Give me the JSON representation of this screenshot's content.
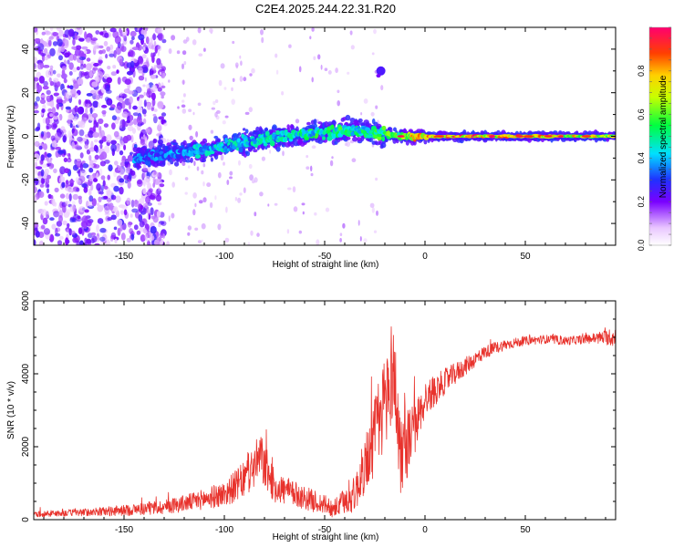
{
  "chart_data": [
    {
      "type": "heatmap",
      "title": "C2E4.2025.244.22.31.R20",
      "xlabel": "Height of straight line (km)",
      "ylabel": "Frequency (Hz)",
      "xlim": [
        -195,
        95
      ],
      "ylim": [
        -50,
        50
      ],
      "xticks": [
        -150,
        -100,
        -50,
        0,
        50
      ],
      "yticks": [
        -40,
        -20,
        0,
        20,
        40
      ],
      "xtick_labels": [
        "-150",
        "-100",
        "-50",
        "0",
        "50"
      ],
      "ytick_labels": [
        "-40",
        "-20",
        "0",
        "20",
        "40"
      ],
      "colorbar": {
        "label": "Normalized spectral amplitude",
        "range": [
          0,
          1
        ],
        "ticks": [
          0.0,
          0.2,
          0.4,
          0.6,
          0.8
        ],
        "tick_labels": [
          "0.0",
          "0.2",
          "0.4",
          "0.6",
          "0.8"
        ]
      },
      "ridge": [
        {
          "x": -145,
          "y": -10,
          "amp": 0.35
        },
        {
          "x": -130,
          "y": -8,
          "amp": 0.35
        },
        {
          "x": -110,
          "y": -6,
          "amp": 0.4
        },
        {
          "x": -90,
          "y": -3,
          "amp": 0.42
        },
        {
          "x": -70,
          "y": 0,
          "amp": 0.45
        },
        {
          "x": -50,
          "y": 2,
          "amp": 0.5
        },
        {
          "x": -35,
          "y": 3,
          "amp": 0.5
        },
        {
          "x": -20,
          "y": 1,
          "amp": 0.55
        },
        {
          "x": -10,
          "y": 0,
          "amp": 0.7
        },
        {
          "x": 10,
          "y": 0,
          "amp": 0.85
        },
        {
          "x": 30,
          "y": 0,
          "amp": 0.8
        },
        {
          "x": 60,
          "y": 0,
          "amp": 0.75
        },
        {
          "x": 95,
          "y": 0,
          "amp": 0.7
        }
      ],
      "noise_region_x": [
        -195,
        -140
      ],
      "isolated_feature": {
        "x": -22,
        "y": 30,
        "amp": 0.25
      }
    },
    {
      "type": "line",
      "title": "",
      "xlabel": "Height of straight line (km)",
      "ylabel": "SNR (10 * v/v)",
      "xlim": [
        -195,
        95
      ],
      "ylim": [
        0,
        6000
      ],
      "xticks": [
        -150,
        -100,
        -50,
        0,
        50
      ],
      "yticks": [
        0,
        2000,
        4000,
        6000
      ],
      "xtick_labels": [
        "-150",
        "-100",
        "-50",
        "0",
        "50"
      ],
      "ytick_labels": [
        "0",
        "2000",
        "4000",
        "6000"
      ],
      "series": [
        {
          "name": "SNR",
          "color": "#e8322c",
          "x": [
            -195,
            -170,
            -150,
            -130,
            -115,
            -100,
            -90,
            -82,
            -75,
            -65,
            -55,
            -45,
            -35,
            -28,
            -22,
            -16,
            -12,
            -5,
            0,
            10,
            20,
            30,
            40,
            50,
            60,
            70,
            80,
            90,
            95
          ],
          "y": [
            150,
            200,
            250,
            350,
            500,
            700,
            1100,
            1700,
            900,
            700,
            500,
            300,
            700,
            1800,
            2800,
            4200,
            1800,
            2500,
            3300,
            3800,
            4200,
            4600,
            4800,
            4900,
            4950,
            4900,
            4950,
            5000,
            5000
          ],
          "noise": [
            80,
            100,
            150,
            200,
            250,
            350,
            500,
            700,
            450,
            350,
            300,
            250,
            500,
            900,
            1300,
            1500,
            1200,
            700,
            500,
            350,
            250,
            180,
            150,
            120,
            120,
            120,
            120,
            200,
            300
          ]
        }
      ]
    }
  ]
}
